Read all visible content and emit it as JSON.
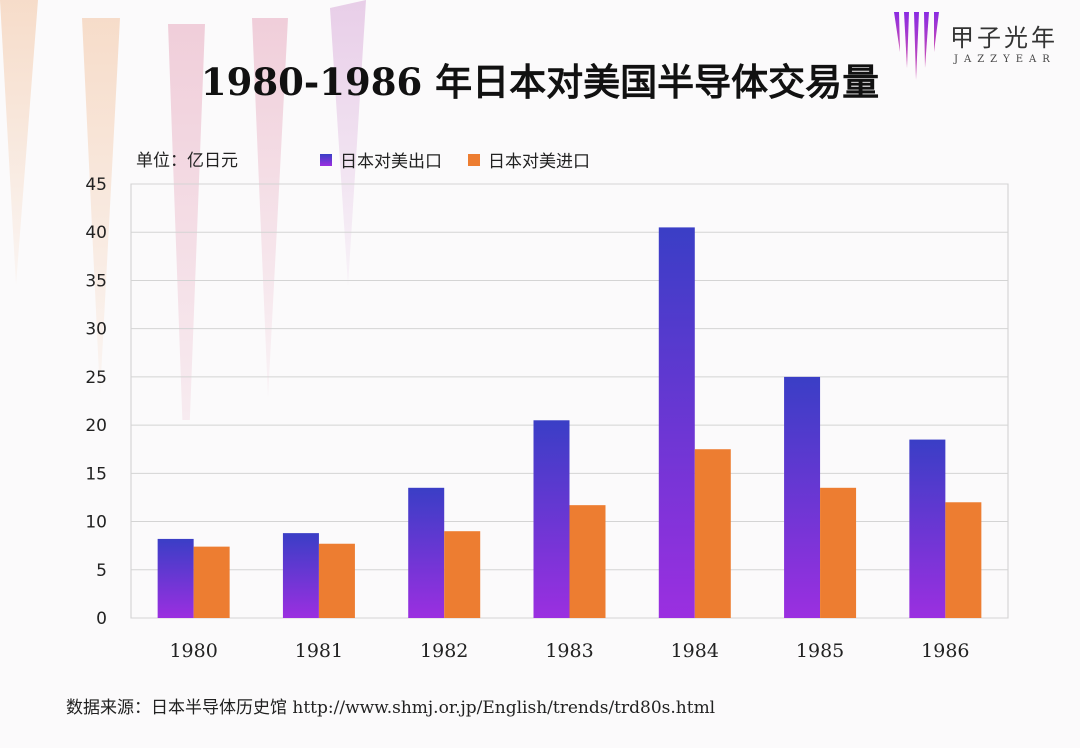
{
  "brand": {
    "name": "甲子光年",
    "sub": "JAZZYEAR",
    "logo_icon": "striped-bars-logo-icon",
    "accent": "#8a2be2"
  },
  "chart_data": {
    "type": "bar",
    "title": "1980-1986 年日本对美国半导体交易量",
    "unit_label": "单位：亿日元",
    "categories": [
      "1980",
      "1981",
      "1982",
      "1983",
      "1984",
      "1985",
      "1986"
    ],
    "series": [
      {
        "name": "日本对美出口",
        "values": [
          8.2,
          8.8,
          13.5,
          20.5,
          40.5,
          25.0,
          18.5
        ],
        "color_top": "#3a3ec6",
        "color_bottom": "#9b2fe0"
      },
      {
        "name": "日本对美进口",
        "values": [
          7.4,
          7.7,
          9.0,
          11.7,
          17.5,
          13.5,
          12.0
        ],
        "color": "#ed7d31"
      }
    ],
    "ylim": [
      0,
      45
    ],
    "yticks": [
      0,
      5,
      10,
      15,
      20,
      25,
      30,
      35,
      40,
      45
    ],
    "grid": true,
    "legend": "top"
  },
  "source": "数据来源：日本半导体历史馆  http://www.shmj.or.jp/English/trends/trd80s.html"
}
